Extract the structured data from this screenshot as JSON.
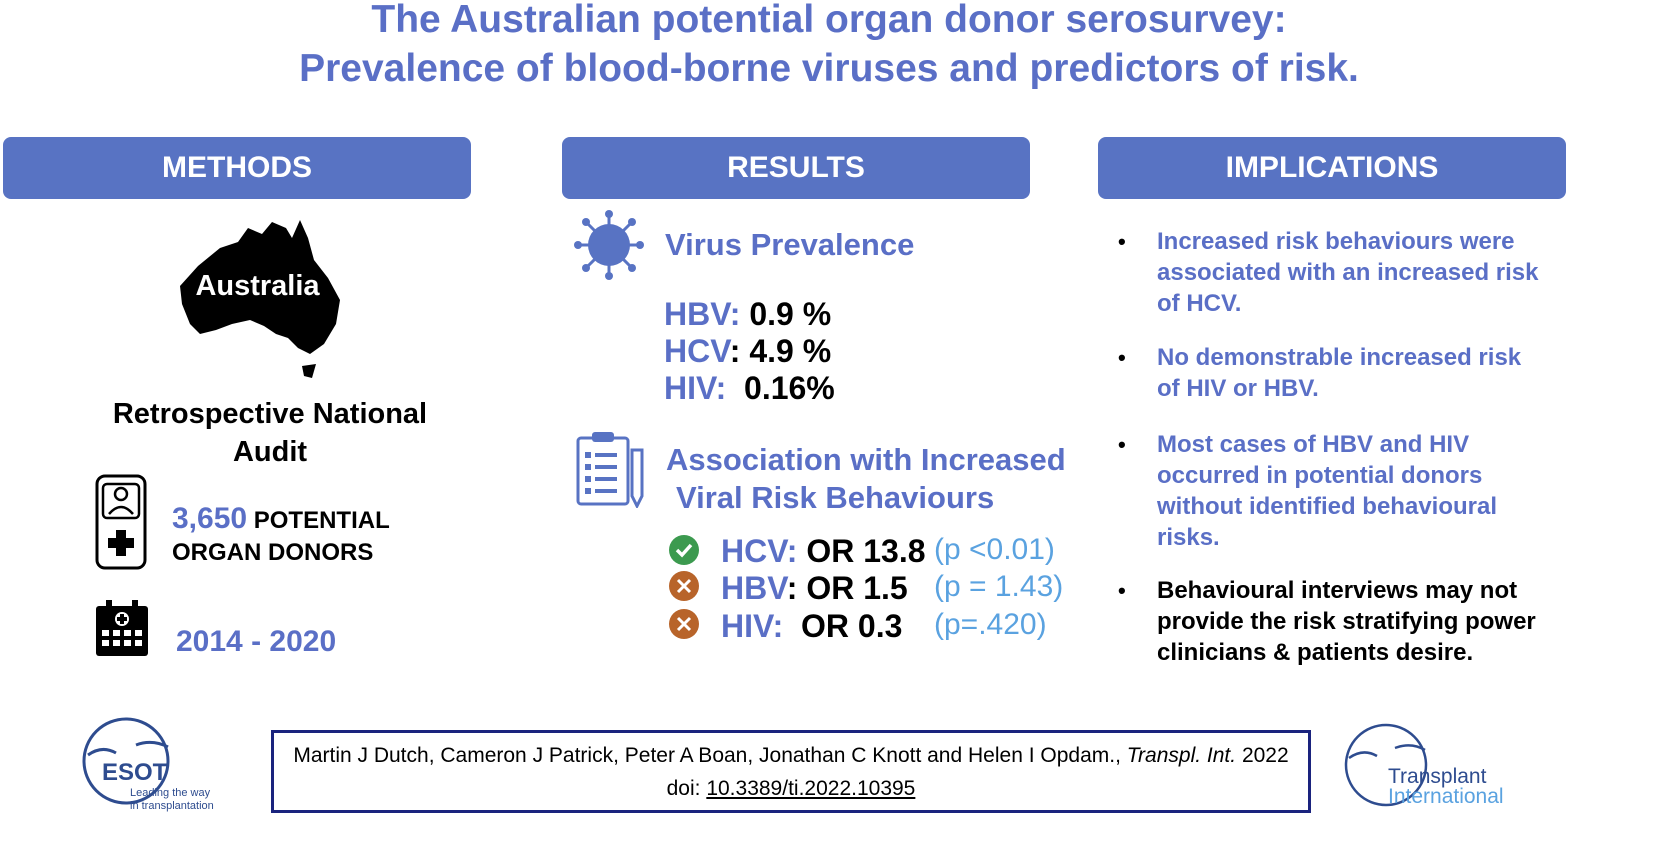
{
  "title": {
    "line1": "The Australian potential organ donor serosurvey:",
    "line2": "Prevalence of blood-borne viruses and predictors of risk."
  },
  "methods": {
    "header": "METHODS",
    "map_label": "Australia",
    "audit_line1": "Retrospective  National",
    "audit_line2": "Audit",
    "donor_count": "3,650",
    "donor_label1": "POTENTIAL",
    "donor_label2": "ORGAN DONORS",
    "years": "2014 - 2020"
  },
  "results": {
    "header": "RESULTS",
    "prevalence_title": "Virus Prevalence",
    "prevalence": [
      {
        "virus": "HBV:",
        "value": "0.9 %"
      },
      {
        "virus": "HCV",
        "value": ": 4.9 %"
      },
      {
        "virus": "HIV:",
        "value": "0.16%"
      }
    ],
    "assoc_title1": "Association with Increased",
    "assoc_title2": "Viral Risk Behaviours",
    "assoc": [
      {
        "virus": "HCV:",
        "or": "OR 13.8",
        "p": "(p <0.01)",
        "icon": "check-icon",
        "color": "#3c9a4f"
      },
      {
        "virus": "HBV",
        "or": ": OR 1.5",
        "p": "(p = 1.43)",
        "icon": "cross-icon",
        "color": "#b8642a"
      },
      {
        "virus": "HIV:",
        "or": "OR 0.3",
        "p": "(p=.420)",
        "icon": "cross-icon",
        "color": "#b8642a"
      }
    ]
  },
  "implications": {
    "header": "IMPLICATIONS",
    "bullets": [
      {
        "marker": "•",
        "lines": [
          "Increased risk behaviours were",
          "associated with an increased risk",
          "of HCV."
        ]
      },
      {
        "marker": "•",
        "lines": [
          "No demonstrable increased risk",
          "of HIV or HBV."
        ]
      },
      {
        "marker": "•",
        "lines": [
          "Most cases of HBV and HIV",
          "occurred in potential donors",
          "without identified behavioural",
          "risks."
        ]
      },
      {
        "marker": "•",
        "lines": [
          "Behavioural interviews may not",
          "provide the risk stratifying power",
          "clinicians & patients desire."
        ]
      }
    ]
  },
  "citation": {
    "authors": "Martin J Dutch, Cameron J Patrick, Peter A Boan, Jonathan C Knott and Helen I Opdam.,",
    "journal": "Transpl. Int.",
    "year": "2022",
    "doi_label": "doi:",
    "doi": "10.3389/ti.2022.10395"
  },
  "logos": {
    "esot_name": "ESOT",
    "esot_tag1": "Leading the way",
    "esot_tag2": "in transplantation",
    "ti_line1": "Transplant",
    "ti_line2": "International"
  },
  "colors": {
    "accent": "#5873c3",
    "title": "#5a6fc6",
    "p_value": "#5aa2e0"
  }
}
